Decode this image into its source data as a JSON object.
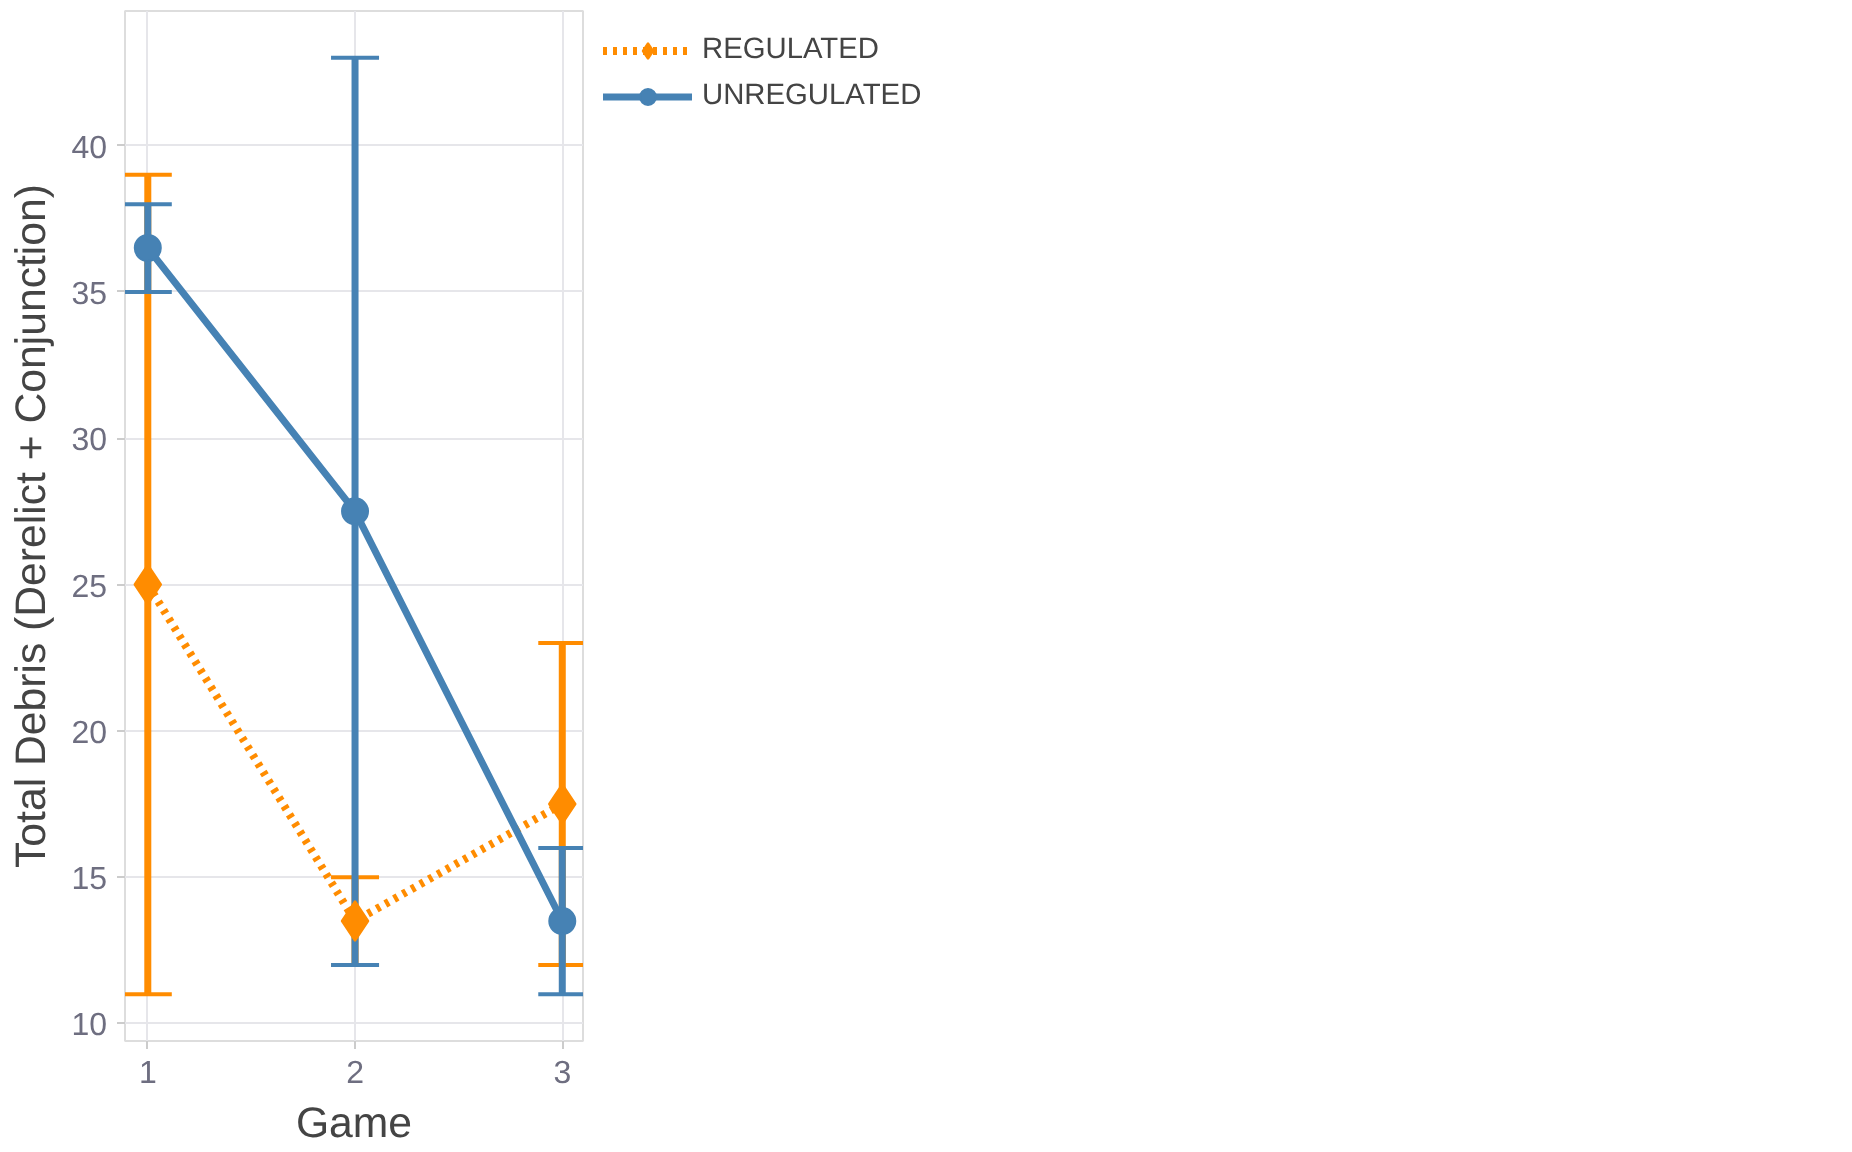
{
  "chart_data": {
    "type": "line",
    "xlabel": "Game",
    "ylabel": "Total Debris (Derelict + Conjunction)",
    "x": [
      1,
      2,
      3
    ],
    "xlim": [
      0.89,
      3.1
    ],
    "xticks": [
      1,
      2,
      3
    ],
    "ylim": [
      9.4,
      44.6
    ],
    "yticks": [
      10,
      15,
      20,
      25,
      30,
      35,
      40
    ],
    "grid": true,
    "legend": "top right",
    "series": [
      {
        "name": "REGULATED",
        "color": "#ff8c00",
        "values": [
          25,
          13.5,
          17.5
        ],
        "errors": [
          [
            11,
            39
          ],
          [
            12,
            15
          ],
          [
            12,
            23
          ]
        ],
        "marker": "diamond",
        "line_style": "dotted"
      },
      {
        "name": "UNREGULATED",
        "color": "#4682b4",
        "values": [
          36.5,
          27.5,
          13.5
        ],
        "errors": [
          [
            35,
            38
          ],
          [
            12,
            43
          ],
          [
            11,
            16
          ]
        ],
        "marker": "circle",
        "line_style": "solid"
      }
    ]
  }
}
